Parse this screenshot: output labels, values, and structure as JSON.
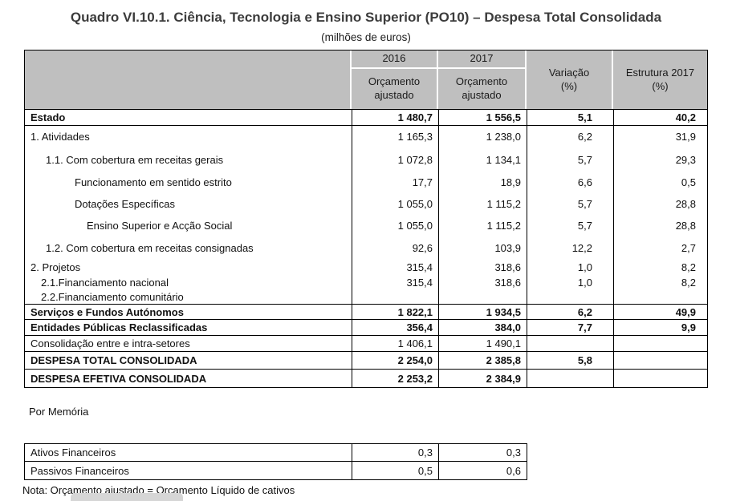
{
  "title": "Quadro VI.10.1. Ciência, Tecnologia e Ensino Superior (PO10) – Despesa Total Consolidada",
  "subtitle": "(milhões de euros)",
  "colors": {
    "header_bg": "#bfbfbf",
    "title_text": "#3c3c3c"
  },
  "table": {
    "header": {
      "col2016": "2016",
      "col2017": "2017",
      "sub2016": "Orçamento ajustado",
      "sub2017": "Orçamento ajustado",
      "variacao_l1": "Variação",
      "variacao_l2": "(%)",
      "estrutura_l1": "Estrutura 2017",
      "estrutura_l2": "(%)"
    },
    "rows": [
      {
        "label": "Estado",
        "v2016": "1 480,7",
        "v2017": "1 556,5",
        "var": "5,1",
        "estr": "40,2"
      },
      {
        "label": "1. Atividades",
        "v2016": "1 165,3",
        "v2017": "1 238,0",
        "var": "6,2",
        "estr": "31,9"
      },
      {
        "label": "1.1. Com cobertura em receitas gerais",
        "v2016": "1 072,8",
        "v2017": "1 134,1",
        "var": "5,7",
        "estr": "29,3"
      },
      {
        "label": "Funcionamento em sentido estrito",
        "v2016": "17,7",
        "v2017": "18,9",
        "var": "6,6",
        "estr": "0,5"
      },
      {
        "label": "Dotações Específicas",
        "v2016": "1 055,0",
        "v2017": "1 115,2",
        "var": "5,7",
        "estr": "28,8"
      },
      {
        "label": "Ensino Superior e Acção Social",
        "v2016": "1 055,0",
        "v2017": "1 115,2",
        "var": "5,7",
        "estr": "28,8"
      },
      {
        "label": "1.2. Com cobertura em receitas consignadas",
        "v2016": "92,6",
        "v2017": "103,9",
        "var": "12,2",
        "estr": "2,7"
      },
      {
        "label": "2. Projetos",
        "v2016": "315,4",
        "v2017": "318,6",
        "var": "1,0",
        "estr": "8,2"
      },
      {
        "label": "2.1.Financiamento nacional",
        "v2016": "315,4",
        "v2017": "318,6",
        "var": "1,0",
        "estr": "8,2"
      },
      {
        "label": "2.2.Financiamento comunitário",
        "v2016": "",
        "v2017": "",
        "var": "",
        "estr": ""
      },
      {
        "label": "Serviços e Fundos Autónomos",
        "v2016": "1 822,1",
        "v2017": "1 934,5",
        "var": "6,2",
        "estr": "49,9"
      },
      {
        "label": "Entidades Públicas Reclassificadas",
        "v2016": "356,4",
        "v2017": "384,0",
        "var": "7,7",
        "estr": "9,9"
      },
      {
        "label": "Consolidação entre e intra-setores",
        "v2016": "1 406,1",
        "v2017": "1 490,1",
        "var": "",
        "estr": ""
      },
      {
        "label": "DESPESA TOTAL CONSOLIDADA",
        "v2016": "2 254,0",
        "v2017": "2 385,8",
        "var": "5,8",
        "estr": ""
      },
      {
        "label": "DESPESA EFETIVA CONSOLIDADA",
        "v2016": "2 253,2",
        "v2017": "2 384,9",
        "var": "",
        "estr": ""
      }
    ]
  },
  "por_memoria": {
    "label": "Por Memória",
    "rows": [
      {
        "label": "Ativos Financeiros",
        "v2016": "0,3",
        "v2017": "0,3"
      },
      {
        "label": "Passivos Financeiros",
        "v2016": "0,5",
        "v2017": "0,6"
      }
    ]
  },
  "note": "Nota: Orçamento ajustado = Orçamento Líquido de cativos"
}
